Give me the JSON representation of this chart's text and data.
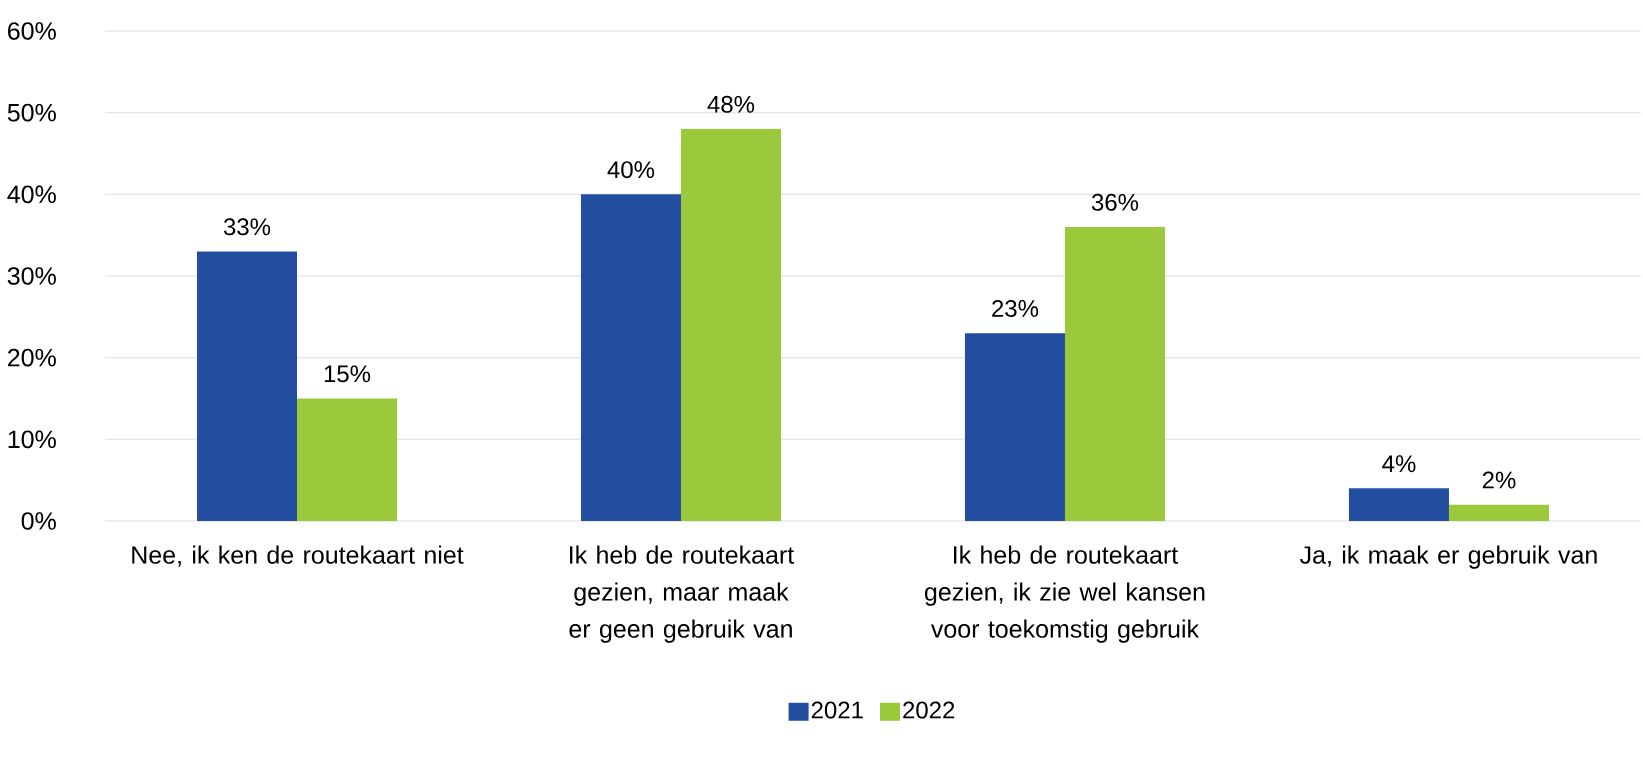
{
  "chart_data": {
    "type": "bar",
    "categories": [
      "Nee, ik ken de routekaart niet",
      "Ik heb de routekaart gezien, maar maak er geen gebruik van",
      "Ik heb de routekaart gezien, ik zie wel kansen voor toekomstig gebruik",
      "Ja, ik maak er gebruik van"
    ],
    "series": [
      {
        "name": "2021",
        "color": "#234ea0",
        "values": [
          33,
          40,
          23,
          4
        ],
        "value_labels": [
          "33%",
          "40%",
          "23%",
          "4%"
        ]
      },
      {
        "name": "2022",
        "color": "#9aca3c",
        "values": [
          15,
          48,
          36,
          2
        ],
        "value_labels": [
          "15%",
          "48%",
          "36%",
          "2%"
        ]
      }
    ],
    "ylim": [
      0,
      60
    ],
    "yticks": [
      {
        "value": 0,
        "label": "0%"
      },
      {
        "value": 10,
        "label": "10%"
      },
      {
        "value": 20,
        "label": "20%"
      },
      {
        "value": 30,
        "label": "30%"
      },
      {
        "value": 40,
        "label": "40%"
      },
      {
        "value": 50,
        "label": "50%"
      },
      {
        "value": 60,
        "label": "60%"
      }
    ],
    "grid": "y",
    "legend": "bottom"
  }
}
